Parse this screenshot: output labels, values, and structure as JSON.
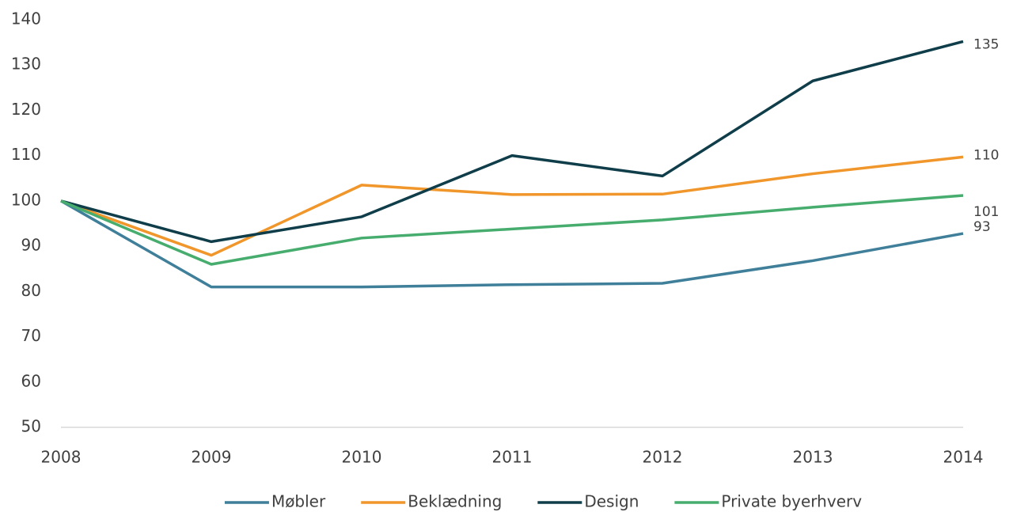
{
  "chart_data": {
    "type": "line",
    "categories": [
      "2008",
      "2009",
      "2010",
      "2011",
      "2012",
      "2013",
      "2014"
    ],
    "series": [
      {
        "name": "Møbler",
        "color": "#3f7f99",
        "values": [
          100,
          81,
          81,
          81.5,
          81.8,
          86.8,
          92.8
        ],
        "value_labels": [
          null,
          null,
          null,
          null,
          null,
          null,
          "93"
        ]
      },
      {
        "name": "Beklædning",
        "color": "#f0962a",
        "values": [
          100,
          88,
          103.5,
          101.4,
          101.5,
          106,
          109.7
        ],
        "value_labels": [
          null,
          null,
          null,
          null,
          null,
          null,
          "110"
        ]
      },
      {
        "name": "Design",
        "color": "#0f3d49",
        "values": [
          100,
          91,
          96.5,
          110,
          105.5,
          126.5,
          135.2
        ],
        "value_labels": [
          null,
          null,
          null,
          null,
          null,
          null,
          "135"
        ]
      },
      {
        "name": "Private byerhverv",
        "color": "#47ad6e",
        "values": [
          100,
          86,
          91.8,
          93.8,
          95.8,
          98.6,
          101.2
        ],
        "value_labels": [
          null,
          null,
          null,
          null,
          null,
          null,
          "101"
        ]
      }
    ],
    "ylim": [
      50,
      140
    ],
    "yticks": [
      50,
      60,
      70,
      80,
      90,
      100,
      110,
      120,
      130,
      140
    ],
    "grid": false,
    "legend": "bottom"
  }
}
